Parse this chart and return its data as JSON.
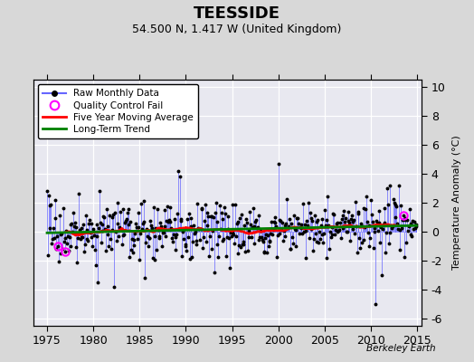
{
  "title": "TEESSIDE",
  "subtitle": "54.500 N, 1.417 W (United Kingdom)",
  "ylabel": "Temperature Anomaly (°C)",
  "xlabel_years": [
    1975,
    1980,
    1985,
    1990,
    1995,
    2000,
    2005,
    2010,
    2015
  ],
  "xlim": [
    1973.5,
    2015.5
  ],
  "ylim": [
    -6.5,
    10.5
  ],
  "yticks": [
    -6,
    -4,
    -2,
    0,
    2,
    4,
    6,
    8,
    10
  ],
  "plot_bg_color": "#e8e8f0",
  "fig_bg_color": "#d8d8d8",
  "raw_line_color": "#6666ff",
  "raw_dot_color": "black",
  "qc_fail_color": "magenta",
  "moving_avg_color": "red",
  "trend_color": "green",
  "watermark": "Berkeley Earth",
  "seed": 17
}
